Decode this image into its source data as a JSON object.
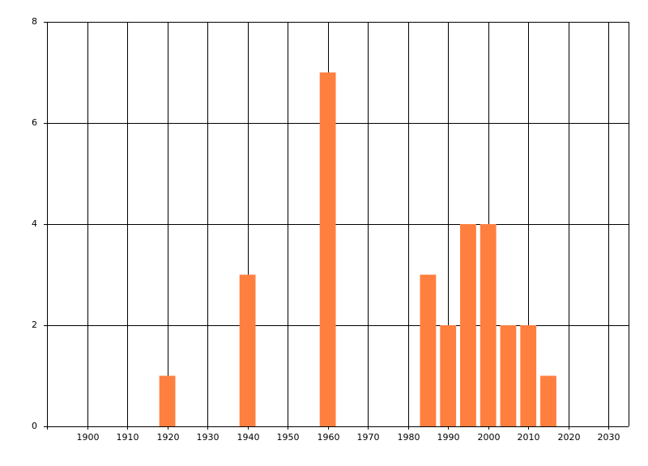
{
  "chart_data": {
    "type": "bar",
    "x": [
      1920,
      1940,
      1960,
      1985,
      1990,
      1995,
      2000,
      2005,
      2010,
      2015
    ],
    "values": [
      1,
      3,
      7,
      3,
      2,
      4,
      4,
      2,
      2,
      1
    ],
    "color": "#ff7f3f",
    "xlim": [
      1890,
      2035
    ],
    "xticks": [
      1900,
      1910,
      1920,
      1930,
      1940,
      1950,
      1960,
      1970,
      1980,
      1990,
      2000,
      2010,
      2020,
      2030
    ],
    "ylim": [
      0,
      8
    ],
    "yticks": [
      0,
      2,
      4,
      6,
      8
    ],
    "grid": true
  }
}
